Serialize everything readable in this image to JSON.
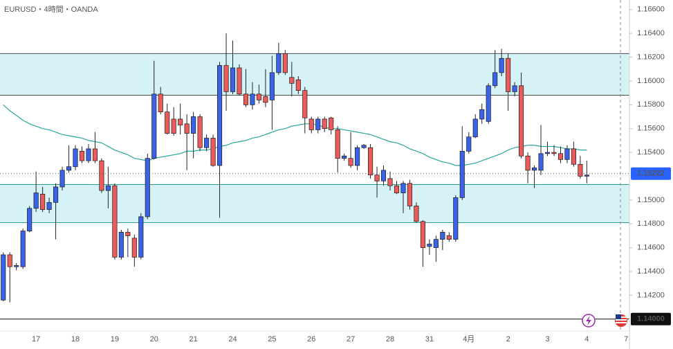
{
  "chart_data": {
    "type": "candlestick",
    "title": "EURUSD・4時間・OANDA",
    "up_color": "#3a63e8",
    "down_color": "#ec5b5b",
    "ylim": [
      1.139,
      1.1668
    ],
    "yticks": [
      {
        "value": 1.166,
        "label": "1.16600"
      },
      {
        "value": 1.164,
        "label": "1.16400"
      },
      {
        "value": 1.162,
        "label": "1.16200"
      },
      {
        "value": 1.16,
        "label": "1.16000"
      },
      {
        "value": 1.158,
        "label": "1.15800"
      },
      {
        "value": 1.156,
        "label": "1.15600"
      },
      {
        "value": 1.154,
        "label": "1.15400"
      },
      {
        "value": 1.15,
        "label": "1.15000"
      },
      {
        "value": 1.148,
        "label": "1.14800"
      },
      {
        "value": 1.146,
        "label": "1.14600"
      },
      {
        "value": 1.144,
        "label": "1.14400"
      },
      {
        "value": 1.142,
        "label": "1.14200"
      }
    ],
    "last_price": {
      "value": 1.15222,
      "label": "1.15222",
      "color": "#2962ff"
    },
    "level": {
      "value": 1.14,
      "label": "1.14000",
      "color": "#111111"
    },
    "zones": [
      {
        "top": 1.1623,
        "bottom": 1.1588,
        "fill": "#d5f3f7",
        "border": "#4a4a4a"
      },
      {
        "top": 1.1513,
        "bottom": 1.1481,
        "fill": "#d5f3f7",
        "border": "#2a9d8f"
      }
    ],
    "categories": [
      null,
      null,
      null,
      null,
      null,
      "17",
      null,
      null,
      null,
      null,
      null,
      "18",
      null,
      null,
      null,
      null,
      null,
      "19",
      null,
      null,
      null,
      null,
      null,
      "20",
      null,
      null,
      null,
      null,
      null,
      "21",
      null,
      null,
      null,
      null,
      null,
      "24",
      null,
      null,
      null,
      null,
      null,
      "25",
      null,
      null,
      null,
      null,
      null,
      "26",
      null,
      null,
      null,
      null,
      null,
      "27",
      null,
      null,
      null,
      null,
      null,
      "28",
      null,
      null,
      null,
      null,
      null,
      "31",
      null,
      null,
      null,
      null,
      null,
      "4月",
      null,
      null,
      null,
      null,
      null,
      "2",
      null,
      null,
      null,
      null,
      null,
      "3",
      null,
      null,
      null,
      null,
      null,
      "4",
      null,
      null,
      null,
      null,
      null,
      "7"
    ],
    "candles": [
      [
        1.1416,
        1.1456,
        1.1415,
        1.1454
      ],
      [
        1.1454,
        1.1456,
        1.1414,
        1.1444
      ],
      [
        1.1444,
        1.1447,
        1.1441,
        1.1445
      ],
      [
        1.1444,
        1.1476,
        1.1442,
        1.1474
      ],
      [
        1.1474,
        1.1495,
        1.1473,
        1.1493
      ],
      [
        1.1493,
        1.1524,
        1.149,
        1.1506
      ],
      [
        1.1505,
        1.1511,
        1.149,
        1.1492
      ],
      [
        1.1492,
        1.1502,
        1.1489,
        1.1498
      ],
      [
        1.1498,
        1.1514,
        1.1467,
        1.1511
      ],
      [
        1.1511,
        1.1528,
        1.1508,
        1.1525
      ],
      [
        1.1525,
        1.1546,
        1.1523,
        1.1528
      ],
      [
        1.1528,
        1.1546,
        1.1525,
        1.1543
      ],
      [
        1.1541,
        1.1545,
        1.1531,
        1.1533
      ],
      [
        1.1533,
        1.1547,
        1.1531,
        1.1543
      ],
      [
        1.1543,
        1.1557,
        1.1531,
        1.1533
      ],
      [
        1.1533,
        1.1535,
        1.1506,
        1.1508
      ],
      [
        1.1508,
        1.1528,
        1.1493,
        1.1512
      ],
      [
        1.1512,
        1.1514,
        1.145,
        1.1452
      ],
      [
        1.1452,
        1.1475,
        1.145,
        1.1473
      ],
      [
        1.1473,
        1.1476,
        1.1452,
        1.147
      ],
      [
        1.1468,
        1.1471,
        1.1444,
        1.1452
      ],
      [
        1.1452,
        1.1489,
        1.145,
        1.1486
      ],
      [
        1.1486,
        1.1539,
        1.1484,
        1.1535
      ],
      [
        1.1535,
        1.1617,
        1.1534,
        1.1589
      ],
      [
        1.1589,
        1.1595,
        1.1572,
        1.1574
      ],
      [
        1.1574,
        1.1581,
        1.1555,
        1.1556
      ],
      [
        1.1568,
        1.1578,
        1.1554,
        1.1556
      ],
      [
        1.1568,
        1.1581,
        1.1555,
        1.1563
      ],
      [
        1.1564,
        1.1572,
        1.1525,
        1.1556
      ],
      [
        1.1556,
        1.1574,
        1.1535,
        1.157
      ],
      [
        1.157,
        1.1572,
        1.1541,
        1.1544
      ],
      [
        1.1544,
        1.1555,
        1.1541,
        1.1552
      ],
      [
        1.1552,
        1.1555,
        1.1528,
        1.1529
      ],
      [
        1.1529,
        1.1616,
        1.1485,
        1.1613
      ],
      [
        1.1613,
        1.164,
        1.1575,
        1.1591
      ],
      [
        1.1591,
        1.1634,
        1.1589,
        1.1611
      ],
      [
        1.1611,
        1.1614,
        1.1588,
        1.1589
      ],
      [
        1.1589,
        1.161,
        1.1578,
        1.158
      ],
      [
        1.158,
        1.1599,
        1.1576,
        1.1589
      ],
      [
        1.1589,
        1.1597,
        1.1581,
        1.1584
      ],
      [
        1.1587,
        1.161,
        1.1578,
        1.1582
      ],
      [
        1.1584,
        1.1621,
        1.1559,
        1.1607
      ],
      [
        1.1607,
        1.1632,
        1.1605,
        1.1623
      ],
      [
        1.1623,
        1.1626,
        1.1605,
        1.1607
      ],
      [
        1.1603,
        1.1616,
        1.1587,
        1.1598
      ],
      [
        1.1601,
        1.1604,
        1.1589,
        1.1592
      ],
      [
        1.1592,
        1.1595,
        1.1556,
        1.1569
      ],
      [
        1.1568,
        1.157,
        1.1556,
        1.1559
      ],
      [
        1.1559,
        1.157,
        1.1556,
        1.1568
      ],
      [
        1.1568,
        1.157,
        1.1557,
        1.156
      ],
      [
        1.1569,
        1.157,
        1.1555,
        1.1559
      ],
      [
        1.1559,
        1.1562,
        1.1523,
        1.1535
      ],
      [
        1.1535,
        1.1539,
        1.1533,
        1.1537
      ],
      [
        1.1535,
        1.1557,
        1.1527,
        1.1529
      ],
      [
        1.1529,
        1.1546,
        1.1525,
        1.1544
      ],
      [
        1.1544,
        1.1547,
        1.1543,
        1.1546
      ],
      [
        1.1544,
        1.1547,
        1.1518,
        1.1521
      ],
      [
        1.1521,
        1.1528,
        1.1502,
        1.1516
      ],
      [
        1.1516,
        1.1529,
        1.1512,
        1.1525
      ],
      [
        1.1518,
        1.1524,
        1.1508,
        1.1512
      ],
      [
        1.1512,
        1.1516,
        1.1505,
        1.1506
      ],
      [
        1.1506,
        1.1516,
        1.1489,
        1.1514
      ],
      [
        1.1514,
        1.1517,
        1.1492,
        1.1495
      ],
      [
        1.1495,
        1.1498,
        1.1481,
        1.1482
      ],
      [
        1.1482,
        1.1483,
        1.1444,
        1.146
      ],
      [
        1.1461,
        1.1467,
        1.1454,
        1.1463
      ],
      [
        1.146,
        1.147,
        1.1448,
        1.1467
      ],
      [
        1.1467,
        1.1475,
        1.1458,
        1.1473
      ],
      [
        1.147,
        1.1473,
        1.1465,
        1.1467
      ],
      [
        1.1467,
        1.1504,
        1.1465,
        1.1502
      ],
      [
        1.1502,
        1.1562,
        1.15,
        1.1541
      ],
      [
        1.1541,
        1.1557,
        1.1539,
        1.1553
      ],
      [
        1.1553,
        1.1572,
        1.1552,
        1.1568
      ],
      [
        1.1568,
        1.1581,
        1.1564,
        1.1576
      ],
      [
        1.1566,
        1.1598,
        1.1564,
        1.1596
      ],
      [
        1.1596,
        1.1626,
        1.1594,
        1.1607
      ],
      [
        1.1607,
        1.1627,
        1.1604,
        1.1619
      ],
      [
        1.1619,
        1.1623,
        1.1575,
        1.1591
      ],
      [
        1.1591,
        1.1599,
        1.1587,
        1.1596
      ],
      [
        1.1596,
        1.1607,
        1.1535,
        1.1537
      ],
      [
        1.1537,
        1.154,
        1.1514,
        1.1525
      ],
      [
        1.1525,
        1.1529,
        1.151,
        1.1527
      ],
      [
        1.1525,
        1.1563,
        1.1521,
        1.1539
      ],
      [
        1.1539,
        1.1549,
        1.1537,
        1.154
      ],
      [
        1.154,
        1.1546,
        1.1537,
        1.1539
      ],
      [
        1.1539,
        1.1545,
        1.1531,
        1.1534
      ],
      [
        1.1534,
        1.1546,
        1.1531,
        1.1543
      ],
      [
        1.1543,
        1.1549,
        1.1528,
        1.153
      ],
      [
        1.153,
        1.1537,
        1.1518,
        1.152
      ],
      [
        1.152,
        1.1533,
        1.1514,
        1.1521
      ],
      null,
      null,
      null,
      null,
      null,
      null
    ],
    "moving_average": {
      "color": "#26a69a",
      "values": [
        1.158,
        1.1575,
        1.1571,
        1.1567,
        1.1564,
        1.1562,
        1.156,
        1.1559,
        1.1557,
        1.1555,
        1.1554,
        1.1553,
        1.1552,
        1.155,
        1.1549,
        1.1548,
        1.1545,
        1.1542,
        1.154,
        1.1538,
        1.1535,
        1.1534,
        1.1533,
        1.1535,
        1.1536,
        1.1537,
        1.1538,
        1.1539,
        1.1541,
        1.1541,
        1.1542,
        1.1542,
        1.1543,
        1.1545,
        1.1546,
        1.1548,
        1.1549,
        1.155,
        1.1552,
        1.1553,
        1.1555,
        1.1557,
        1.1559,
        1.156,
        1.1562,
        1.1563,
        1.1564,
        1.1564,
        1.1563,
        1.1561,
        1.156,
        1.156,
        1.1559,
        1.1558,
        1.1557,
        1.1556,
        1.1555,
        1.1553,
        1.1551,
        1.1549,
        1.1548,
        1.1546,
        1.1543,
        1.1541,
        1.1539,
        1.1536,
        1.1534,
        1.1532,
        1.1531,
        1.1529,
        1.1529,
        1.153,
        1.1531,
        1.1533,
        1.1535,
        1.1537,
        1.1539,
        1.1542,
        1.1544,
        1.1545,
        1.1546,
        1.1546,
        1.1545,
        1.1545,
        1.1545,
        1.1544,
        1.1543,
        1.1543,
        1.1542,
        1.1542,
        null,
        null,
        null,
        null,
        null,
        null
      ]
    }
  }
}
